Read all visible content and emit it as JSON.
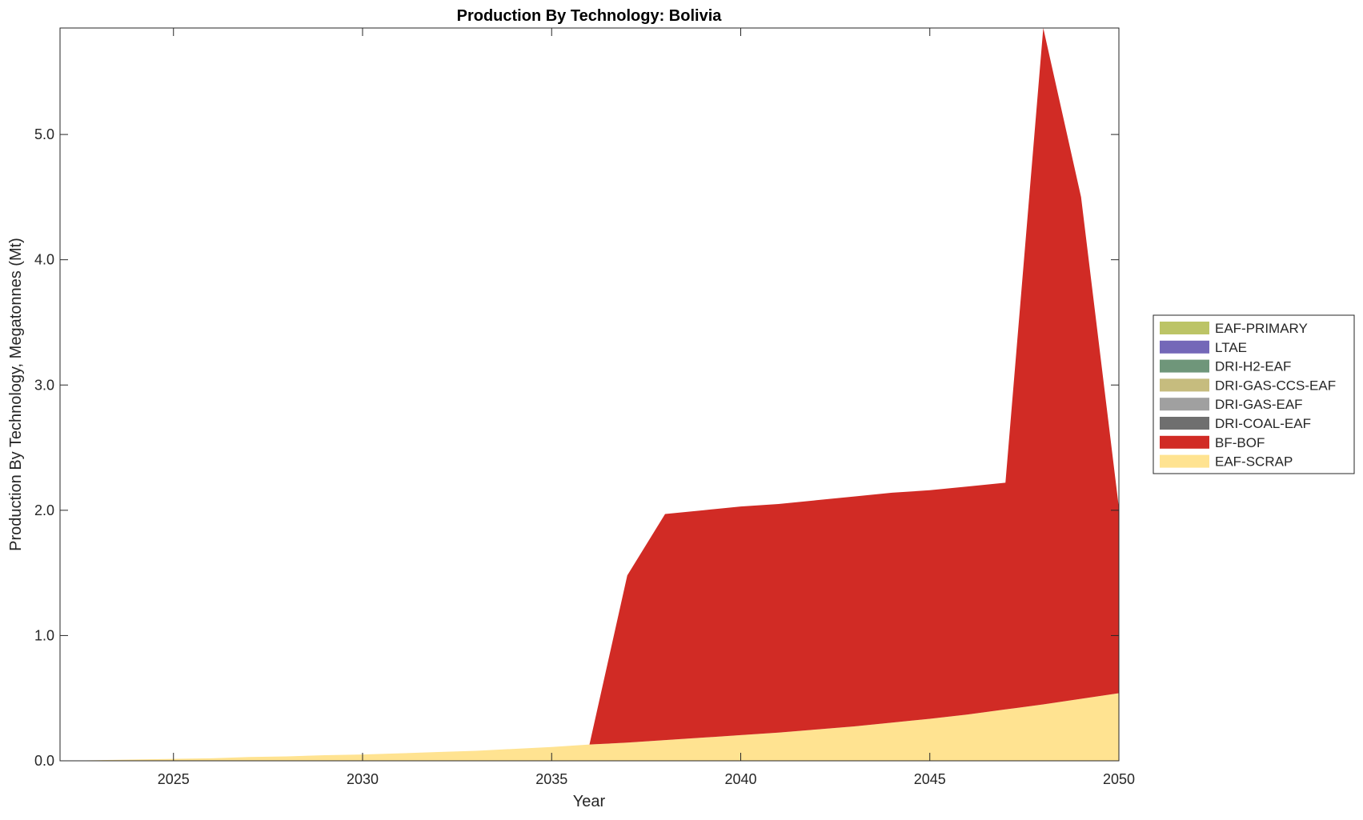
{
  "chart_data": {
    "type": "area",
    "stacked": true,
    "title": "Production By Technology: Bolivia",
    "xlabel": "Year",
    "ylabel": "Production By Technology, Megatonnes (Mt)",
    "xlim": [
      2022,
      2050
    ],
    "ylim": [
      0,
      5.85
    ],
    "xticks": [
      2025,
      2030,
      2035,
      2040,
      2045,
      2050
    ],
    "xtick_labels": [
      "2025",
      "2030",
      "2035",
      "2040",
      "2045",
      "2050"
    ],
    "yticks": [
      0,
      1,
      2,
      3,
      4,
      5
    ],
    "ytick_labels": [
      "0.0",
      "1.0",
      "2.0",
      "3.0",
      "4.0",
      "5.0"
    ],
    "legend_placement": "right-outside",
    "x": [
      2022,
      2023,
      2024,
      2025,
      2026,
      2027,
      2028,
      2029,
      2030,
      2031,
      2032,
      2033,
      2034,
      2035,
      2036,
      2037,
      2038,
      2039,
      2040,
      2041,
      2042,
      2043,
      2044,
      2045,
      2046,
      2047,
      2048,
      2049,
      2050
    ],
    "series": [
      {
        "name": "EAF-SCRAP",
        "color": "#FFE391",
        "values": [
          0,
          0.005,
          0.01,
          0.015,
          0.02,
          0.03,
          0.035,
          0.045,
          0.05,
          0.06,
          0.07,
          0.08,
          0.095,
          0.11,
          0.13,
          0.145,
          0.165,
          0.185,
          0.205,
          0.225,
          0.25,
          0.275,
          0.305,
          0.335,
          0.37,
          0.41,
          0.45,
          0.495,
          0.54
        ]
      },
      {
        "name": "BF-BOF",
        "color": "#D12B25",
        "values": [
          0,
          0,
          0,
          0,
          0,
          0,
          0,
          0,
          0,
          0,
          0,
          0,
          0,
          0,
          0,
          1.335,
          1.805,
          1.815,
          1.825,
          1.825,
          1.83,
          1.835,
          1.835,
          1.825,
          1.82,
          1.81,
          5.4,
          4.005,
          1.48
        ]
      },
      {
        "name": "DRI-COAL-EAF",
        "color": "#6F6F6F",
        "values": [
          0,
          0,
          0,
          0,
          0,
          0,
          0,
          0,
          0,
          0,
          0,
          0,
          0,
          0,
          0,
          0,
          0,
          0,
          0,
          0,
          0,
          0,
          0,
          0,
          0,
          0,
          0,
          0,
          0
        ]
      },
      {
        "name": "DRI-GAS-EAF",
        "color": "#A0A0A0",
        "values": [
          0,
          0,
          0,
          0,
          0,
          0,
          0,
          0,
          0,
          0,
          0,
          0,
          0,
          0,
          0,
          0,
          0,
          0,
          0,
          0,
          0,
          0,
          0,
          0,
          0,
          0,
          0,
          0,
          0
        ]
      },
      {
        "name": "DRI-GAS-CCS-EAF",
        "color": "#C6BC7E",
        "values": [
          0,
          0,
          0,
          0,
          0,
          0,
          0,
          0,
          0,
          0,
          0,
          0,
          0,
          0,
          0,
          0,
          0,
          0,
          0,
          0,
          0,
          0,
          0,
          0,
          0,
          0,
          0,
          0,
          0
        ]
      },
      {
        "name": "DRI-H2-EAF",
        "color": "#6F967A",
        "values": [
          0,
          0,
          0,
          0,
          0,
          0,
          0,
          0,
          0,
          0,
          0,
          0,
          0,
          0,
          0,
          0,
          0,
          0,
          0,
          0,
          0,
          0,
          0,
          0,
          0,
          0,
          0,
          0,
          0
        ]
      },
      {
        "name": "LTAE",
        "color": "#7468B8",
        "values": [
          0,
          0,
          0,
          0,
          0,
          0,
          0,
          0,
          0,
          0,
          0,
          0,
          0,
          0,
          0,
          0,
          0,
          0,
          0,
          0,
          0,
          0,
          0,
          0,
          0,
          0,
          0,
          0,
          0
        ]
      },
      {
        "name": "EAF-PRIMARY",
        "color": "#BCC466",
        "values": [
          0,
          0,
          0,
          0,
          0,
          0,
          0,
          0,
          0,
          0,
          0,
          0,
          0,
          0,
          0,
          0,
          0,
          0,
          0,
          0,
          0,
          0,
          0,
          0,
          0,
          0,
          0,
          0,
          0
        ]
      }
    ],
    "legend_order": [
      "EAF-PRIMARY",
      "LTAE",
      "DRI-H2-EAF",
      "DRI-GAS-CCS-EAF",
      "DRI-GAS-EAF",
      "DRI-COAL-EAF",
      "BF-BOF",
      "EAF-SCRAP"
    ]
  }
}
